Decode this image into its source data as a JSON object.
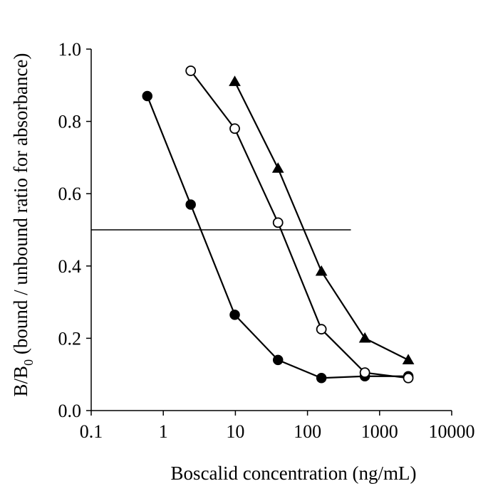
{
  "chart_data": {
    "type": "line",
    "title": "",
    "xlabel": "Boscalid concentration (ng/mL)",
    "ylabel": {
      "main": "B/B",
      "sub": "0",
      "rest": " (bound / unbound ratio for absorbance)"
    },
    "x_scale": "log",
    "xlim": [
      0.1,
      10000
    ],
    "ylim": [
      0.0,
      1.0
    ],
    "x_ticks": [
      {
        "value": 0.1,
        "label": "0.1"
      },
      {
        "value": 1,
        "label": "1"
      },
      {
        "value": 10,
        "label": "10"
      },
      {
        "value": 100,
        "label": "100"
      },
      {
        "value": 1000,
        "label": "1000"
      },
      {
        "value": 10000,
        "label": "10000"
      }
    ],
    "y_ticks": [
      {
        "value": 0.0,
        "label": "0.0"
      },
      {
        "value": 0.2,
        "label": "0.2"
      },
      {
        "value": 0.4,
        "label": "0.4"
      },
      {
        "value": 0.6,
        "label": "0.6"
      },
      {
        "value": 0.8,
        "label": "0.8"
      },
      {
        "value": 1.0,
        "label": "1.0"
      }
    ],
    "grid": false,
    "legend": "none",
    "series": [
      {
        "marker": "filled-circle",
        "x": [
          0.6,
          2.4,
          9.8,
          39,
          156,
          625,
          2500
        ],
        "y": [
          0.87,
          0.57,
          0.265,
          0.14,
          0.09,
          0.095,
          0.095
        ]
      },
      {
        "marker": "open-circle",
        "x": [
          2.4,
          9.8,
          39,
          156,
          625,
          2500
        ],
        "y": [
          0.94,
          0.78,
          0.52,
          0.225,
          0.105,
          0.09
        ]
      },
      {
        "marker": "filled-triangle",
        "x": [
          9.8,
          39,
          156,
          625,
          2500
        ],
        "y": [
          0.91,
          0.67,
          0.385,
          0.2,
          0.14
        ]
      }
    ],
    "reference_line": {
      "y": 0.5,
      "x_from": 0.1,
      "x_to": 400
    },
    "colors": {
      "line": "#000000",
      "marker_fill_filled": "#000000",
      "marker_fill_open": "#ffffff"
    }
  }
}
